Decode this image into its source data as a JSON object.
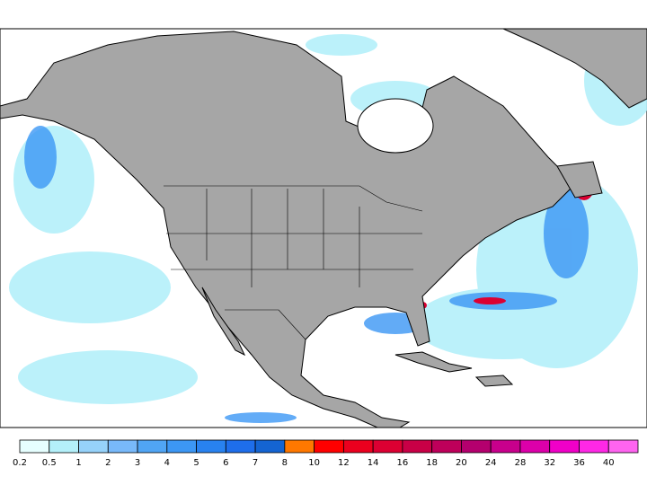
{
  "legend": {
    "ticks": [
      0.2,
      0.5,
      1,
      2,
      3,
      4,
      5,
      6,
      7,
      8,
      10,
      12,
      14,
      16,
      18,
      20,
      24,
      28,
      32,
      36,
      40
    ],
    "colors": [
      "#e6ffff",
      "#b4f0fa",
      "#96d2fa",
      "#78b9fa",
      "#50a5f5",
      "#3c97f5",
      "#2882f0",
      "#1e6eeb",
      "#1464d2",
      "#ff7800",
      "#ff0000",
      "#eb001e",
      "#dc0032",
      "#c80046",
      "#be005a",
      "#b4006e",
      "#c8008c",
      "#dc00aa",
      "#f000c8",
      "#ff28e6",
      "#ff64f0"
    ]
  }
}
